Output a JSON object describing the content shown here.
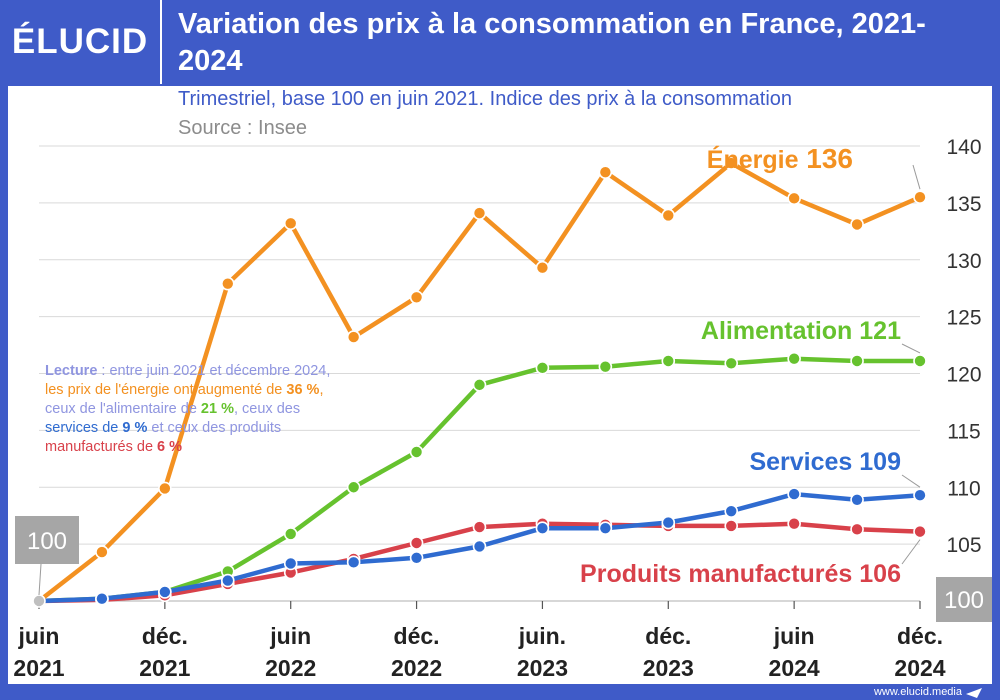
{
  "header": {
    "logo": "ÉLUCID",
    "title": "Variation des prix à la consommation en France, 2021-2024"
  },
  "subtitle": "Trimestriel, base 100 en juin 2021. Indice des prix à la consommation",
  "source": "Source : Insee",
  "reading_note": {
    "label": "Lecture",
    "part1": " : entre juin 2021 et décembre 2024,",
    "part2": "les prix de l'énergie ont augmenté de ",
    "energy_pct": "36 %",
    "part3": ",",
    "part4": "ceux de l'alimentaire de ",
    "food_pct": "21 %",
    "part5": ", ceux des",
    "part6": "services de ",
    "services_pct": "9 %",
    "part7": " et ceux des produits",
    "part8": "manufacturés de ",
    "manuf_pct": "6 %"
  },
  "footer": {
    "url": "www.elucid.media"
  },
  "colors": {
    "header_bg": "#3f5bc8",
    "energy": "#f39121",
    "food": "#66c22e",
    "services": "#2f6bd0",
    "manufactured": "#d8414a",
    "grid": "#d9d9d9",
    "base_box": "#a6a6a6"
  },
  "chart_data": {
    "type": "line",
    "title": "Variation des prix à la consommation en France, 2021-2024",
    "xlabel": "",
    "ylabel": "",
    "ylim": [
      100,
      140
    ],
    "yticks": [
      105,
      110,
      115,
      120,
      125,
      130,
      135,
      140
    ],
    "y_axis_side": "right",
    "base_value": 100,
    "base_label": "100",
    "x": [
      "juin 2021",
      "sept. 2021",
      "déc. 2021",
      "mars 2022",
      "juin 2022",
      "sept. 2022",
      "déc. 2022",
      "mars 2023",
      "juin 2023",
      "sept. 2023",
      "déc. 2023",
      "mars 2024",
      "juin 2024",
      "sept. 2024",
      "déc. 2024"
    ],
    "xticks": [
      {
        "index": 0,
        "line1": "juin",
        "line2": "2021"
      },
      {
        "index": 2,
        "line1": "déc.",
        "line2": "2021"
      },
      {
        "index": 4,
        "line1": "juin",
        "line2": "2022"
      },
      {
        "index": 6,
        "line1": "déc.",
        "line2": "2022"
      },
      {
        "index": 8,
        "line1": "juin.",
        "line2": "2023"
      },
      {
        "index": 10,
        "line1": "déc.",
        "line2": "2023"
      },
      {
        "index": 12,
        "line1": "juin",
        "line2": "2024"
      },
      {
        "index": 14,
        "line1": "déc.",
        "line2": "2024"
      }
    ],
    "series": [
      {
        "key": "energy",
        "name": "Énergie",
        "end_label": "136",
        "color": "#f39121",
        "values": [
          100,
          104.3,
          109.9,
          127.9,
          133.2,
          123.2,
          126.7,
          134.1,
          129.3,
          137.7,
          133.9,
          138.5,
          135.4,
          133.1,
          135.5
        ]
      },
      {
        "key": "food",
        "name": "Alimentation",
        "end_label": "121",
        "color": "#66c22e",
        "values": [
          100,
          100.2,
          100.8,
          102.6,
          105.9,
          110.0,
          113.1,
          119.0,
          120.5,
          120.6,
          121.1,
          120.9,
          121.3,
          121.1,
          121.1
        ]
      },
      {
        "key": "services",
        "name": "Services",
        "end_label": "109",
        "color": "#2f6bd0",
        "values": [
          100,
          100.2,
          100.8,
          101.8,
          103.3,
          103.4,
          103.8,
          104.8,
          106.4,
          106.4,
          106.9,
          107.9,
          109.4,
          108.9,
          109.3
        ]
      },
      {
        "key": "manufactured",
        "name": "Produits manufacturés",
        "end_label": "106",
        "color": "#d8414a",
        "values": [
          100,
          100.1,
          100.5,
          101.5,
          102.5,
          103.7,
          105.1,
          106.5,
          106.8,
          106.7,
          106.6,
          106.6,
          106.8,
          106.3,
          106.1
        ]
      }
    ]
  }
}
